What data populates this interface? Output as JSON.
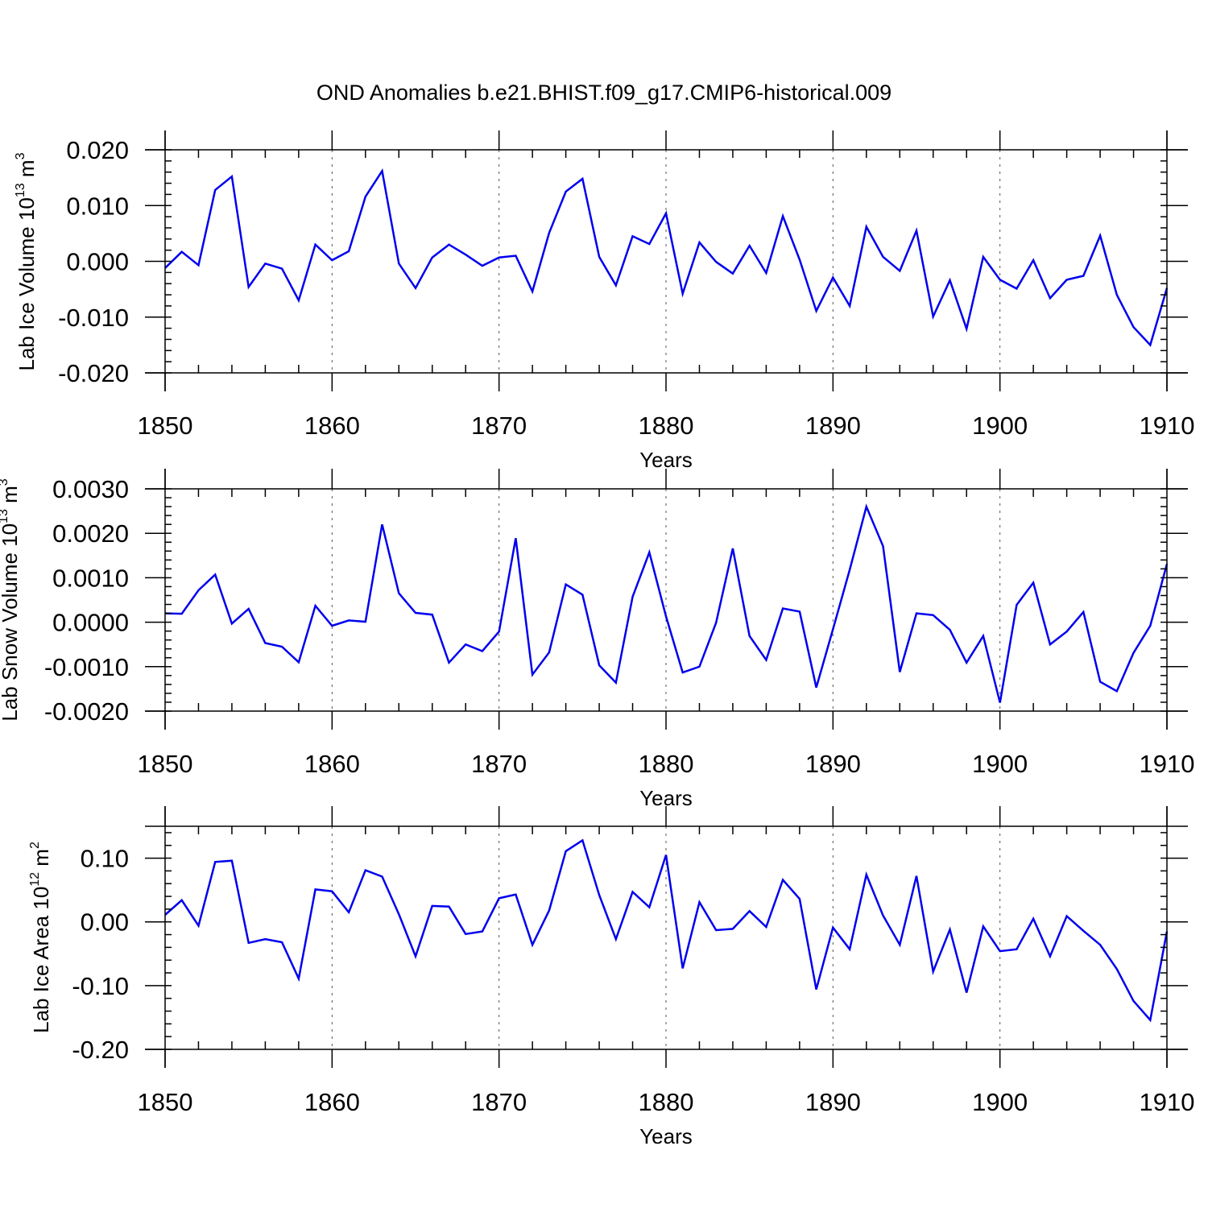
{
  "title": "OND Anomalies b.e21.BHIST.f09_g17.CMIP6-historical.009",
  "line_color": "#0000ee",
  "chart_data": [
    {
      "type": "line",
      "ylabel": {
        "prefix": "Lab Ice Volume 10",
        "exponent": "13",
        "unit_base": " m",
        "unit_exponent": "3"
      },
      "xlabel": "Years",
      "xlim": [
        1850,
        1910
      ],
      "ylim": [
        -0.02,
        0.02
      ],
      "grid": "vertical dashed at decades",
      "x_ticks": [
        1850,
        1860,
        1870,
        1880,
        1890,
        1900,
        1910
      ],
      "x_tick_labels": [
        "1850",
        "1860",
        "1870",
        "1880",
        "1890",
        "1900",
        "1910"
      ],
      "y_ticks": [
        0.02,
        0.01,
        0.0,
        -0.01,
        -0.02
      ],
      "y_tick_labels": [
        "0.020",
        "0.010",
        "0.000",
        "-0.010",
        "-0.020"
      ],
      "x_start": 1850,
      "series": [
        {
          "name": "Lab Ice Volume",
          "values": [
            -0.0012,
            0.0017,
            -0.0007,
            0.0128,
            0.0152,
            -0.0046,
            -0.0004,
            -0.0013,
            -0.007,
            0.003,
            0.0002,
            0.0018,
            0.0116,
            0.0162,
            -0.0004,
            -0.0048,
            0.0007,
            0.003,
            0.0012,
            -0.0008,
            0.0007,
            0.001,
            -0.0054,
            0.0051,
            0.0125,
            0.0148,
            0.0008,
            -0.0043,
            0.0045,
            0.0031,
            0.0086,
            -0.0058,
            0.0034,
            -0.0001,
            -0.0022,
            0.0028,
            -0.0021,
            0.0081,
            0.0003,
            -0.0089,
            -0.0029,
            -0.008,
            0.0062,
            0.0008,
            -0.0017,
            0.0055,
            -0.0099,
            -0.0034,
            -0.0121,
            0.0008,
            -0.0033,
            -0.0049,
            0.0002,
            -0.0066,
            -0.0033,
            -0.0026,
            0.0046,
            -0.006,
            -0.0118,
            -0.015,
            -0.0048
          ]
        }
      ]
    },
    {
      "type": "line",
      "ylabel": {
        "prefix": "Lab Snow Volume 10",
        "exponent": "13",
        "unit_base": " m",
        "unit_exponent": "3"
      },
      "xlabel": "Years",
      "xlim": [
        1850,
        1910
      ],
      "ylim": [
        -0.002,
        0.003
      ],
      "grid": "vertical dashed at decades",
      "x_ticks": [
        1850,
        1860,
        1870,
        1880,
        1890,
        1900,
        1910
      ],
      "x_tick_labels": [
        "1850",
        "1860",
        "1870",
        "1880",
        "1890",
        "1900",
        "1910"
      ],
      "y_ticks": [
        0.003,
        0.002,
        0.001,
        0.0,
        -0.001,
        -0.002
      ],
      "y_tick_labels": [
        "0.0030",
        "0.0020",
        "0.0010",
        "0.0000",
        "-0.0010",
        "-0.0020"
      ],
      "x_start": 1850,
      "series": [
        {
          "name": "Lab Snow Volume",
          "values": [
            0.0002,
            0.00019,
            0.00072,
            0.00107,
            -3e-05,
            0.0003,
            -0.00047,
            -0.00055,
            -0.0009,
            0.00037,
            -8e-05,
            4e-05,
            1e-05,
            0.0022,
            0.00065,
            0.00021,
            0.00017,
            -0.00091,
            -0.0005,
            -0.00065,
            -0.00021,
            0.00189,
            -0.00118,
            -0.00068,
            0.00085,
            0.00062,
            -0.00097,
            -0.00136,
            0.00057,
            0.00157,
            0.00013,
            -0.00113,
            -0.001,
            -1e-05,
            0.00166,
            -0.00031,
            -0.00085,
            0.00031,
            0.00024,
            -0.00147,
            -0.00016,
            0.00118,
            0.0026,
            0.00171,
            -0.00112,
            0.0002,
            0.00016,
            -0.00017,
            -0.00091,
            -0.00031,
            -0.00181,
            0.00039,
            0.00089,
            -0.0005,
            -0.00021,
            0.00023,
            -0.00134,
            -0.00155,
            -0.00069,
            -8e-05,
            0.00131
          ]
        }
      ]
    },
    {
      "type": "line",
      "ylabel": {
        "prefix": "Lab Ice Area 10",
        "exponent": "12",
        "unit_base": " m",
        "unit_exponent": "2"
      },
      "xlabel": "Years",
      "xlim": [
        1850,
        1910
      ],
      "ylim": [
        -0.2,
        0.15
      ],
      "grid": "vertical dashed at decades",
      "x_ticks": [
        1850,
        1860,
        1870,
        1880,
        1890,
        1900,
        1910
      ],
      "x_tick_labels": [
        "1850",
        "1860",
        "1870",
        "1880",
        "1890",
        "1900",
        "1910"
      ],
      "y_ticks": [
        0.1,
        0.0,
        -0.1,
        -0.2
      ],
      "y_tick_labels": [
        "0.10",
        "0.00",
        "-0.10",
        "-0.20"
      ],
      "x_start": 1850,
      "series": [
        {
          "name": "Lab Ice Area",
          "values": [
            0.011,
            0.034,
            -0.006,
            0.094,
            0.096,
            -0.033,
            -0.027,
            -0.032,
            -0.089,
            0.051,
            0.048,
            0.015,
            0.081,
            0.071,
            0.012,
            -0.054,
            0.025,
            0.024,
            -0.019,
            -0.015,
            0.037,
            0.043,
            -0.036,
            0.018,
            0.111,
            0.128,
            0.042,
            -0.027,
            0.047,
            0.023,
            0.105,
            -0.073,
            0.031,
            -0.013,
            -0.011,
            0.017,
            -0.008,
            0.066,
            0.036,
            -0.106,
            -0.009,
            -0.043,
            0.074,
            0.01,
            -0.036,
            0.072,
            -0.078,
            -0.012,
            -0.111,
            -0.007,
            -0.046,
            -0.043,
            0.005,
            -0.054,
            0.009,
            -0.014,
            -0.036,
            -0.074,
            -0.124,
            -0.154,
            -0.015
          ]
        }
      ]
    }
  ]
}
